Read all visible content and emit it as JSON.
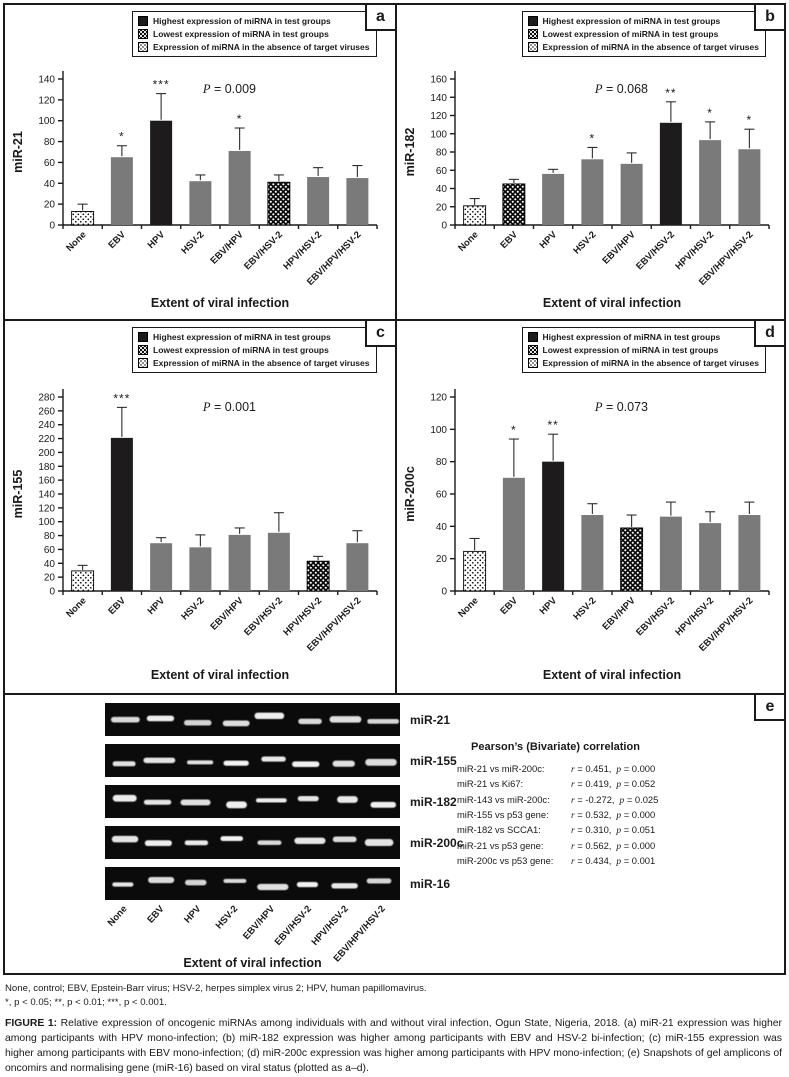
{
  "figure": {
    "legend": [
      "Highest expression of miRNA in test groups",
      "Lowest expression of miRNA in test groups",
      "Expression of miRNA in the absence of target viruses"
    ],
    "legend_styles": [
      "highest",
      "lowest",
      "absent"
    ],
    "categories": [
      "None",
      "EBV",
      "HPV",
      "HSV-2",
      "EBV/HPV",
      "EBV/HSV-2",
      "HPV/HSV-2",
      "EBV/HPV/HSV-2"
    ],
    "xlabel": "Extent of viral infection"
  },
  "chart_data": [
    {
      "panel": "a",
      "type": "bar",
      "ylabel": "miR-21",
      "xlabel": "Extent of viral infection",
      "p_value": "P = 0.009",
      "ylim": [
        0,
        140
      ],
      "ytick_step": 20,
      "legend_position": "top",
      "grid": false,
      "categories": [
        "None",
        "EBV",
        "HPV",
        "HSV-2",
        "EBV/HPV",
        "EBV/HSV-2",
        "HPV/HSV-2",
        "EBV/HPV/HSV-2"
      ],
      "values": [
        13,
        65,
        100,
        42,
        71,
        41,
        46,
        45
      ],
      "errors": [
        7,
        11,
        26,
        6,
        22,
        7,
        9,
        12
      ],
      "stars": [
        "",
        "*",
        "***",
        "",
        "*",
        "",
        "",
        ""
      ],
      "bar_styles": [
        "absent",
        "test",
        "highest",
        "test",
        "test",
        "lowest",
        "test",
        "test"
      ]
    },
    {
      "panel": "b",
      "type": "bar",
      "ylabel": "miR-182",
      "xlabel": "Extent of viral infection",
      "p_value": "P = 0.068",
      "ylim": [
        0,
        160
      ],
      "ytick_step": 20,
      "legend_position": "top",
      "grid": false,
      "categories": [
        "None",
        "EBV",
        "HPV",
        "HSV-2",
        "EBV/HPV",
        "EBV/HSV-2",
        "HPV/HSV-2",
        "EBV/HPV/HSV-2"
      ],
      "values": [
        21,
        45,
        56,
        72,
        67,
        112,
        93,
        83
      ],
      "errors": [
        8,
        5,
        5,
        13,
        12,
        23,
        20,
        22
      ],
      "stars": [
        "",
        "",
        "",
        "*",
        "",
        "**",
        "*",
        "*"
      ],
      "bar_styles": [
        "absent",
        "lowest",
        "test",
        "test",
        "test",
        "highest",
        "test",
        "test"
      ]
    },
    {
      "panel": "c",
      "type": "bar",
      "ylabel": "miR-155",
      "xlabel": "Extent of viral infection",
      "p_value": "P = 0.001",
      "ylim": [
        0,
        280
      ],
      "ytick_step": 20,
      "legend_position": "top",
      "grid": false,
      "categories": [
        "None",
        "EBV",
        "HPV",
        "HSV-2",
        "EBV/HPV",
        "EBV/HSV-2",
        "HPV/HSV-2",
        "EBV/HPV/HSV-2"
      ],
      "values": [
        29,
        221,
        69,
        63,
        81,
        84,
        43,
        69
      ],
      "errors": [
        8,
        44,
        8,
        18,
        10,
        29,
        7,
        18
      ],
      "stars": [
        "",
        "***",
        "",
        "",
        "",
        "",
        "",
        ""
      ],
      "bar_styles": [
        "absent",
        "highest",
        "test",
        "test",
        "test",
        "test",
        "lowest",
        "test"
      ]
    },
    {
      "panel": "d",
      "type": "bar",
      "ylabel": "miR-200c",
      "xlabel": "Extent of viral infection",
      "p_value": "P = 0.073",
      "ylim": [
        0,
        120
      ],
      "ytick_step": 20,
      "legend_position": "top",
      "grid": false,
      "categories": [
        "None",
        "EBV",
        "HPV",
        "HSV-2",
        "EBV/HPV",
        "EBV/HSV-2",
        "HPV/HSV-2",
        "EBV/HPV/HSV-2"
      ],
      "values": [
        24.5,
        70,
        80,
        47,
        39,
        46,
        42,
        47
      ],
      "errors": [
        8,
        24,
        17,
        7,
        8,
        9,
        7,
        8
      ],
      "stars": [
        "",
        "*",
        "**",
        "",
        "",
        "",
        "",
        ""
      ],
      "bar_styles": [
        "absent",
        "test",
        "highest",
        "test",
        "lowest",
        "test",
        "test",
        "test"
      ]
    }
  ],
  "panel_e": {
    "panel": "e",
    "gel_labels": [
      "miR-21",
      "miR-155",
      "miR-182",
      "miR-200c",
      "miR-16"
    ],
    "lane_labels": [
      "None",
      "EBV",
      "HPV",
      "HSV-2",
      "EBV/HPV",
      "EBV/HSV-2",
      "HPV/HSV-2",
      "EBV/HPV/HSV-2"
    ],
    "xlabel": "Extent of viral infection",
    "correlation_title": "Pearson’s (Bivariate) correlation",
    "correlations": [
      {
        "pair": "miR-21 vs miR-200c:",
        "r_text": "r = 0.451,",
        "p_text": "p = 0.000"
      },
      {
        "pair": "miR-21 vs Ki67:",
        "r_text": "r = 0.419,",
        "p_text": "p = 0.052"
      },
      {
        "pair": "miR-143 vs miR-200c:",
        "r_text": "r = -0.272,",
        "p_text": "p = 0.025"
      },
      {
        "pair": "miR-155 vs p53 gene:",
        "r_text": "r = 0.532,",
        "p_text": "p = 0.000"
      },
      {
        "pair": "miR-182 vs SCCA1:",
        "r_text": "r = 0.310,",
        "p_text": "p = 0.051"
      },
      {
        "pair": "miR-21 vs p53 gene:",
        "r_text": "r = 0.562,",
        "p_text": "p = 0.000"
      },
      {
        "pair": "miR-200c vs p53 gene:",
        "r_text": "r = 0.434,",
        "p_text": "p = 0.001"
      }
    ]
  },
  "caption": {
    "abbrev": "None, control; EBV, Epstein-Barr virus; HSV-2, herpes simplex virus 2; HPV, human papillomavirus.",
    "significance": "*, p < 0.05; **, p < 0.01; ***, p < 0.001.",
    "figure_label": "FIGURE 1:",
    "figure_text": "Relative expression of oncogenic miRNAs among individuals with and without viral infection, Ogun State, Nigeria, 2018. (a) miR-21 expression was higher among participants with HPV mono-infection; (b) miR-182 expression was higher among participants with EBV and HSV-2 bi-infection; (c) miR-155 expression was higher among participants with EBV mono-infection; (d) miR-200c expression was higher among participants with HPV mono-infection; (e) Snapshots of gel amplicons of oncomirs and normalising gene (miR-16) based on viral status (plotted as a–d)."
  },
  "colors": {
    "bar_test": "#7a7a7a",
    "bar_highest": "#1d1b1b",
    "axis": "#1a1a1a",
    "background": "#ffffff"
  }
}
